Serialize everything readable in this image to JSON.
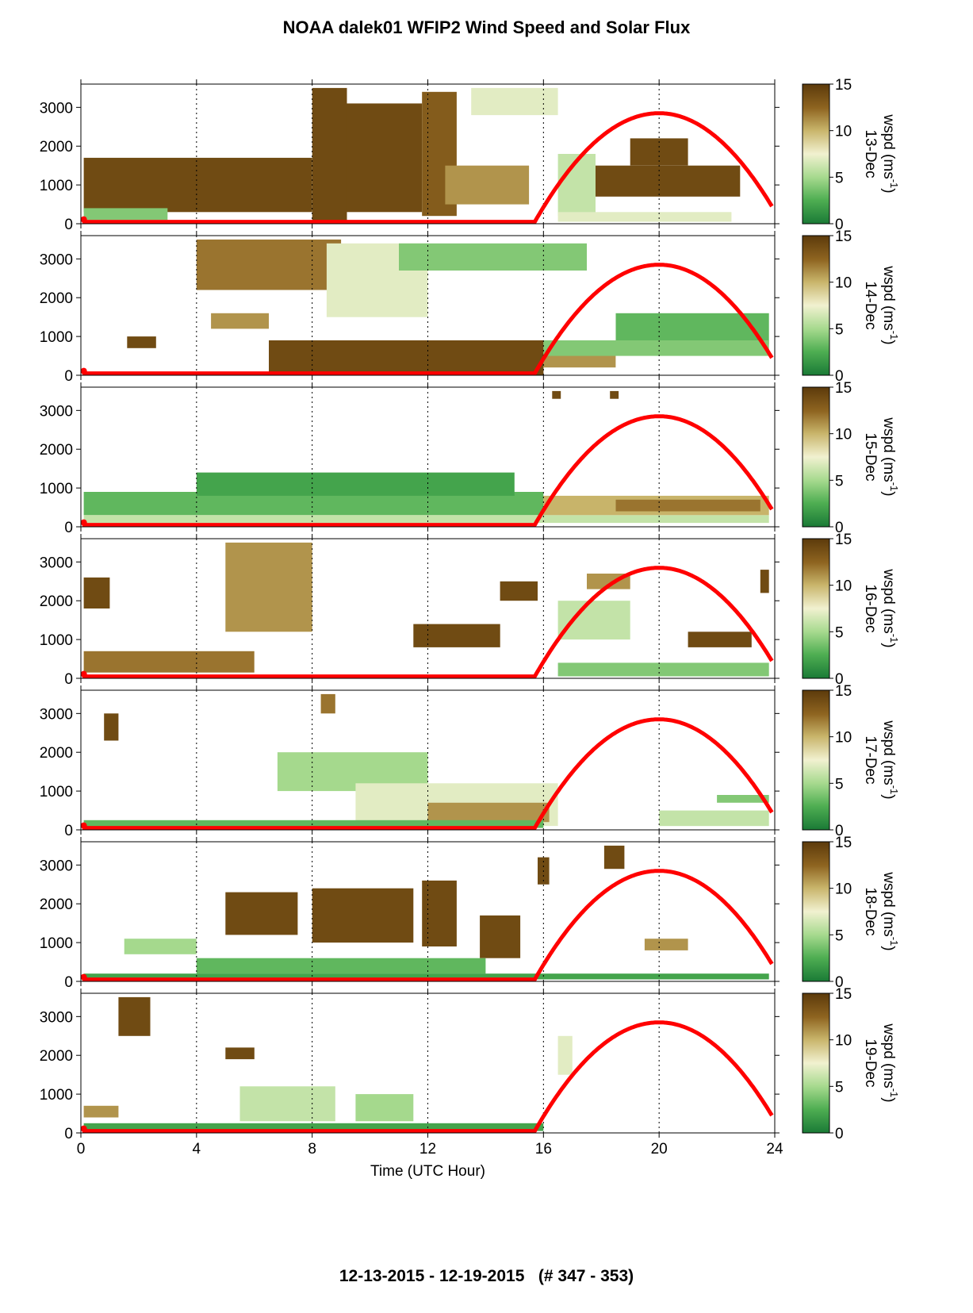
{
  "title": "NOAA dalek01 WFIP2 Wind Speed and Solar Flux",
  "footer": "12-13-2015 - 12-19-2015   (# 347 - 353)",
  "chart_data": {
    "type": "heatmap",
    "xlabel": "Time (UTC Hour)",
    "xlim": [
      0,
      24
    ],
    "xticks": [
      0,
      4,
      8,
      12,
      16,
      20,
      24
    ],
    "ylim": [
      0,
      3600
    ],
    "yticks": [
      0,
      1000,
      2000,
      3000
    ],
    "colorbar": {
      "label": "wspd (ms",
      "label_sup": "-1",
      "label_close": ")",
      "range": [
        0,
        15
      ],
      "ticks": [
        0,
        5,
        10,
        15
      ],
      "colors": [
        "#1a7a36",
        "#4fae52",
        "#a5d98d",
        "#f1f1d0",
        "#c8b46a",
        "#8e6420",
        "#5c3a0b"
      ]
    },
    "solar_curve": {
      "color": "#ff0000",
      "sunrise_hour": 15.7,
      "peak_hour": 20,
      "peak_height": 2850,
      "night_level": 50,
      "end_hour": 23.9
    },
    "panels": [
      {
        "day": "13-Dec",
        "regions": [
          {
            "t0": 0.1,
            "t1": 8.0,
            "h0": 300,
            "h1": 1700,
            "v": 14
          },
          {
            "t0": 8.0,
            "t1": 9.2,
            "h0": 0,
            "h1": 3500,
            "v": 14
          },
          {
            "t0": 9.2,
            "t1": 11.8,
            "h0": 300,
            "h1": 3100,
            "v": 14
          },
          {
            "t0": 11.8,
            "t1": 13.0,
            "h0": 200,
            "h1": 3400,
            "v": 13
          },
          {
            "t0": 12.6,
            "t1": 15.5,
            "h0": 500,
            "h1": 1500,
            "v": 11
          },
          {
            "t0": 13.5,
            "t1": 16.5,
            "h0": 2800,
            "h1": 3500,
            "v": 7
          },
          {
            "t0": 16.5,
            "t1": 17.8,
            "h0": 200,
            "h1": 1800,
            "v": 6
          },
          {
            "t0": 17.8,
            "t1": 22.8,
            "h0": 700,
            "h1": 1500,
            "v": 14
          },
          {
            "t0": 19.0,
            "t1": 21.0,
            "h0": 1500,
            "h1": 2200,
            "v": 14
          },
          {
            "t0": 0.1,
            "t1": 3.0,
            "h0": 100,
            "h1": 400,
            "v": 4
          },
          {
            "t0": 16.5,
            "t1": 22.5,
            "h0": 50,
            "h1": 300,
            "v": 7
          }
        ]
      },
      {
        "day": "14-Dec",
        "regions": [
          {
            "t0": 6.5,
            "t1": 16.0,
            "h0": 0,
            "h1": 900,
            "v": 14
          },
          {
            "t0": 16.0,
            "t1": 18.5,
            "h0": 200,
            "h1": 900,
            "v": 11
          },
          {
            "t0": 4.0,
            "t1": 9.0,
            "h0": 2200,
            "h1": 3500,
            "v": 12
          },
          {
            "t0": 8.5,
            "t1": 12.0,
            "h0": 1500,
            "h1": 3400,
            "v": 7
          },
          {
            "t0": 11.0,
            "t1": 17.5,
            "h0": 2700,
            "h1": 3400,
            "v": 4
          },
          {
            "t0": 18.5,
            "t1": 23.8,
            "h0": 800,
            "h1": 1600,
            "v": 3
          },
          {
            "t0": 16.0,
            "t1": 23.8,
            "h0": 500,
            "h1": 900,
            "v": 4
          },
          {
            "t0": 1.6,
            "t1": 2.6,
            "h0": 700,
            "h1": 1000,
            "v": 14
          },
          {
            "t0": 4.5,
            "t1": 6.5,
            "h0": 1200,
            "h1": 1600,
            "v": 11
          }
        ]
      },
      {
        "day": "15-Dec",
        "regions": [
          {
            "t0": 0.1,
            "t1": 16.0,
            "h0": 300,
            "h1": 900,
            "v": 3
          },
          {
            "t0": 4.0,
            "t1": 15.0,
            "h0": 800,
            "h1": 1400,
            "v": 2
          },
          {
            "t0": 0.1,
            "t1": 23.8,
            "h0": 100,
            "h1": 300,
            "v": 6
          },
          {
            "t0": 16.0,
            "t1": 23.8,
            "h0": 300,
            "h1": 800,
            "v": 10
          },
          {
            "t0": 18.5,
            "t1": 23.5,
            "h0": 400,
            "h1": 700,
            "v": 12
          },
          {
            "t0": 16.3,
            "t1": 16.6,
            "h0": 3300,
            "h1": 3500,
            "v": 14
          },
          {
            "t0": 18.3,
            "t1": 18.6,
            "h0": 3300,
            "h1": 3500,
            "v": 14
          }
        ]
      },
      {
        "day": "16-Dec",
        "regions": [
          {
            "t0": 0.1,
            "t1": 6.0,
            "h0": 150,
            "h1": 700,
            "v": 12
          },
          {
            "t0": 0.1,
            "t1": 1.0,
            "h0": 1800,
            "h1": 2600,
            "v": 14
          },
          {
            "t0": 5.0,
            "t1": 8.0,
            "h0": 1200,
            "h1": 3500,
            "v": 11
          },
          {
            "t0": 11.5,
            "t1": 14.5,
            "h0": 800,
            "h1": 1400,
            "v": 14
          },
          {
            "t0": 14.5,
            "t1": 15.8,
            "h0": 2000,
            "h1": 2500,
            "v": 14
          },
          {
            "t0": 16.5,
            "t1": 19.0,
            "h0": 1000,
            "h1": 2000,
            "v": 6
          },
          {
            "t0": 17.5,
            "t1": 19.0,
            "h0": 2300,
            "h1": 2700,
            "v": 11
          },
          {
            "t0": 21.0,
            "t1": 23.2,
            "h0": 800,
            "h1": 1200,
            "v": 14
          },
          {
            "t0": 23.5,
            "t1": 23.8,
            "h0": 2200,
            "h1": 2800,
            "v": 14
          },
          {
            "t0": 16.5,
            "t1": 23.8,
            "h0": 50,
            "h1": 400,
            "v": 4
          }
        ]
      },
      {
        "day": "17-Dec",
        "regions": [
          {
            "t0": 6.8,
            "t1": 12.0,
            "h0": 1000,
            "h1": 2000,
            "v": 5
          },
          {
            "t0": 9.5,
            "t1": 16.5,
            "h0": 100,
            "h1": 1200,
            "v": 7
          },
          {
            "t0": 12.0,
            "t1": 16.2,
            "h0": 200,
            "h1": 700,
            "v": 11
          },
          {
            "t0": 0.1,
            "t1": 16.0,
            "h0": 50,
            "h1": 250,
            "v": 3
          },
          {
            "t0": 22.0,
            "t1": 23.8,
            "h0": 700,
            "h1": 900,
            "v": 4
          },
          {
            "t0": 20.0,
            "t1": 23.8,
            "h0": 100,
            "h1": 500,
            "v": 6
          },
          {
            "t0": 0.8,
            "t1": 1.3,
            "h0": 2300,
            "h1": 3000,
            "v": 14
          },
          {
            "t0": 8.3,
            "t1": 8.8,
            "h0": 3000,
            "h1": 3500,
            "v": 12
          }
        ]
      },
      {
        "day": "18-Dec",
        "regions": [
          {
            "t0": 5.0,
            "t1": 7.5,
            "h0": 1200,
            "h1": 2300,
            "v": 14
          },
          {
            "t0": 8.0,
            "t1": 11.5,
            "h0": 1000,
            "h1": 2400,
            "v": 14
          },
          {
            "t0": 11.8,
            "t1": 13.0,
            "h0": 900,
            "h1": 2600,
            "v": 14
          },
          {
            "t0": 13.8,
            "t1": 15.2,
            "h0": 600,
            "h1": 1700,
            "v": 14
          },
          {
            "t0": 15.8,
            "t1": 16.2,
            "h0": 2500,
            "h1": 3200,
            "v": 14
          },
          {
            "t0": 18.1,
            "t1": 18.8,
            "h0": 2900,
            "h1": 3500,
            "v": 14
          },
          {
            "t0": 19.5,
            "t1": 21.0,
            "h0": 800,
            "h1": 1100,
            "v": 11
          },
          {
            "t0": 1.5,
            "t1": 4.0,
            "h0": 700,
            "h1": 1100,
            "v": 5
          },
          {
            "t0": 4.0,
            "t1": 14.0,
            "h0": 200,
            "h1": 600,
            "v": 3
          },
          {
            "t0": 0.1,
            "t1": 23.8,
            "h0": 50,
            "h1": 200,
            "v": 2
          }
        ]
      },
      {
        "day": "19-Dec",
        "regions": [
          {
            "t0": 1.3,
            "t1": 2.4,
            "h0": 2500,
            "h1": 3500,
            "v": 14
          },
          {
            "t0": 5.0,
            "t1": 6.0,
            "h0": 1900,
            "h1": 2200,
            "v": 14
          },
          {
            "t0": 5.5,
            "t1": 8.8,
            "h0": 300,
            "h1": 1200,
            "v": 6
          },
          {
            "t0": 9.5,
            "t1": 11.5,
            "h0": 300,
            "h1": 1000,
            "v": 5
          },
          {
            "t0": 0.1,
            "t1": 16.0,
            "h0": 50,
            "h1": 250,
            "v": 2
          },
          {
            "t0": 0.1,
            "t1": 1.3,
            "h0": 400,
            "h1": 700,
            "v": 11
          },
          {
            "t0": 16.5,
            "t1": 17.0,
            "h0": 1500,
            "h1": 2500,
            "v": 7
          }
        ]
      }
    ]
  }
}
